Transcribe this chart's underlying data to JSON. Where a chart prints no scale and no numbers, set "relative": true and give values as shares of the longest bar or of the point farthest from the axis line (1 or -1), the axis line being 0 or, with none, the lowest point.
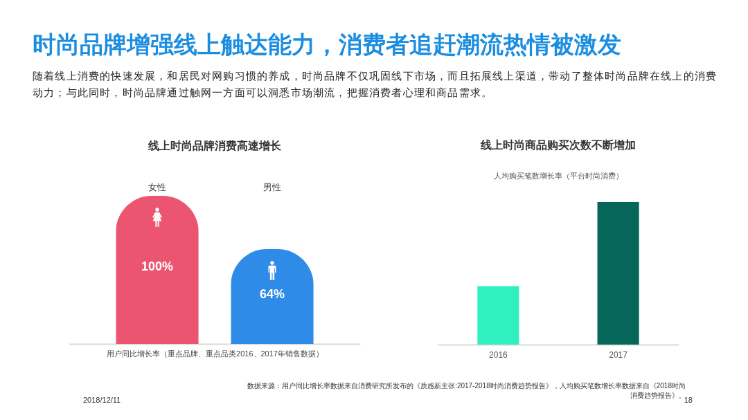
{
  "chart_data": [
    {
      "type": "other",
      "title": "时尚品牌增强线上触达能力，消费者追赶潮流热情被激发",
      "subtitle": "随着线上消费的快速发展，和居民对网购习惯的养成，时尚品牌不仅巩固线下市场，而且拓展线上渠道，带动了整体时尚品牌在线上的消费动力；与此同时，时尚品牌通过触网一方面可以洞悉市场潮流，把握消费者心理和商品需求。",
      "annotations": [
        "数据来源：用户同比增长率数据来自消费研究所发布的《质感新主张:2017-2018时尚消费趋势报告》，人均购买笔数增长率数据来自《2018时尚消费趋势报告》。",
        "2018/12/11",
        "18"
      ]
    },
    {
      "type": "bar",
      "title": "线上时尚品牌消费高速增长",
      "xlabel": "用户同比增长率（重点品牌、重点品类2016、2017年销售数据）",
      "categories": [
        "女性",
        "男性"
      ],
      "values": [
        100,
        64
      ],
      "colors": [
        "#ec5570",
        "#2e8be8"
      ],
      "value_labels": [
        "100%",
        "64%"
      ],
      "tick_labels": "x"
    },
    {
      "type": "bar",
      "title": "线上时尚商品购买次数不断增加",
      "subtitle": "人均购买笔数增长率（平台时尚消费）",
      "categories": [
        "2016",
        "2017"
      ],
      "values": [
        0.41,
        1
      ],
      "colors": [
        "#30f0c0",
        "#07665a"
      ],
      "relative": true
    }
  ]
}
